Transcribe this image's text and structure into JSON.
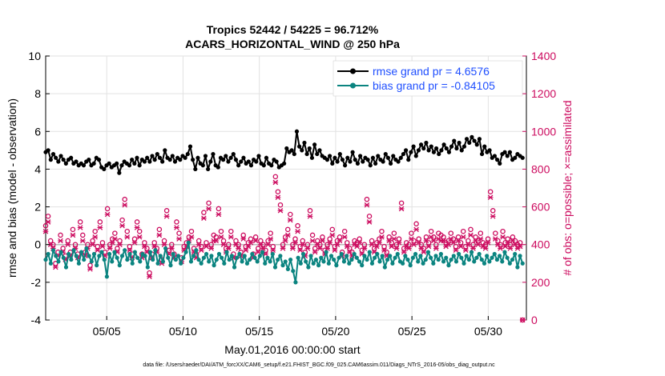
{
  "chart_data": {
    "type": "line",
    "title_line1": "Tropics 52442 / 54225 = 96.712%",
    "title_line2": "ACARS_HORIZONTAL_WIND @ 250 hPa",
    "xlabel": "May.01,2016 00:00:00 start",
    "ylabel_left": "rmse and bias (model - observation)",
    "ylabel_right": "# of obs: o=possible; ×=assimilated",
    "footnote": "data file: /Users/raeder/DAI/ATM_forcXX/CAM6_setup/f.e21.FHIST_BGC.f09_025.CAM6assim.011/Diags_NTrS_2016-05/obs_diag_output.nc",
    "xlim": [
      1,
      32.5
    ],
    "x_ticks": [
      5,
      10,
      15,
      20,
      25,
      30
    ],
    "x_tick_labels": [
      "05/05",
      "05/10",
      "05/15",
      "05/20",
      "05/25",
      "05/30"
    ],
    "ylim_left": [
      -4,
      10
    ],
    "y_left_ticks": [
      "-4",
      "-2",
      "0",
      "2",
      "4",
      "6",
      "8",
      "10"
    ],
    "ylim_right": [
      0,
      1400
    ],
    "y_right_ticks": [
      "0",
      "200",
      "400",
      "600",
      "800",
      "1000",
      "1200",
      "1400"
    ],
    "grid": true,
    "legend_position": "top-right",
    "colors": {
      "rmse": "#000000",
      "bias": "#0b8480",
      "obs": "#cc0a5e",
      "zero": "#bbbbbb",
      "legend": "#1f4fff"
    },
    "series": [
      {
        "name": "rmse grand pr = 4.6576",
        "axis": "left",
        "marker": "dot-line",
        "values": [
          4.9,
          5.0,
          4.5,
          4.8,
          4.6,
          4.4,
          4.7,
          4.5,
          4.3,
          4.5,
          4.6,
          4.3,
          4.4,
          4.2,
          4.3,
          4.2,
          4.4,
          4.5,
          4.2,
          4.3,
          4.6,
          4.5,
          4.1,
          4.0,
          4.2,
          4.3,
          4.1,
          4.2,
          4.3,
          3.8,
          4.2,
          4.4,
          4.3,
          4.2,
          4.5,
          4.3,
          4.6,
          4.2,
          4.5,
          4.4,
          4.6,
          4.4,
          4.7,
          4.5,
          4.8,
          4.6,
          4.4,
          5.0,
          4.6,
          4.5,
          4.7,
          4.4,
          4.6,
          4.5,
          4.7,
          4.6,
          4.8,
          5.2,
          4.5,
          4.0,
          4.6,
          4.3,
          4.2,
          4.7,
          4.0,
          4.4,
          4.8,
          4.2,
          4.1,
          4.6,
          4.5,
          4.7,
          4.4,
          4.6,
          4.8,
          4.5,
          4.2,
          4.4,
          4.6,
          4.3,
          4.4,
          4.2,
          4.5,
          4.4,
          4.7,
          4.3,
          4.2,
          4.6,
          4.3,
          4.2,
          4.5,
          4.4,
          4.1,
          4.2,
          4.3,
          5.1,
          4.9,
          5.0,
          4.8,
          6.0,
          5.2,
          5.0,
          5.4,
          4.8,
          5.1,
          4.6,
          5.3,
          4.8,
          5.0,
          4.7,
          4.6,
          4.5,
          4.7,
          4.3,
          4.6,
          4.4,
          4.8,
          4.5,
          4.2,
          4.6,
          4.4,
          4.9,
          4.5,
          4.3,
          4.7,
          4.4,
          4.6,
          4.5,
          4.2,
          4.6,
          4.3,
          4.7,
          4.5,
          4.4,
          4.8,
          4.6,
          4.3,
          4.7,
          4.5,
          4.4,
          4.6,
          4.8,
          5.0,
          4.5,
          4.9,
          5.2,
          4.7,
          5.0,
          5.3,
          5.1,
          5.4,
          5.0,
          5.2,
          4.9,
          5.1,
          4.8,
          5.0,
          5.3,
          5.1,
          4.9,
          5.2,
          5.5,
          5.1,
          5.4,
          5.0,
          5.2,
          5.6,
          5.4,
          5.7,
          5.5,
          5.3,
          5.6,
          4.8,
          5.2,
          4.9,
          5.0,
          4.6,
          4.7,
          4.5,
          4.3,
          4.8,
          4.9,
          4.7,
          4.9,
          4.5,
          4.6,
          4.8,
          4.7,
          4.6
        ]
      },
      {
        "name": "bias grand pr = -0.84105",
        "axis": "left",
        "marker": "dot-line",
        "values": [
          -0.8,
          -0.5,
          -1.0,
          -0.3,
          -0.6,
          -0.9,
          -0.4,
          -0.7,
          -1.2,
          -0.5,
          -0.8,
          -0.3,
          -0.6,
          -1.0,
          -0.4,
          -0.8,
          -0.2,
          -0.6,
          -0.9,
          -0.5,
          -1.1,
          -0.6,
          -0.4,
          -0.8,
          -1.7,
          -0.5,
          -0.9,
          -0.4,
          -0.7,
          -1.1,
          -0.6,
          -0.3,
          -0.8,
          -0.5,
          -1.0,
          -0.4,
          -0.7,
          -0.9,
          -0.5,
          -0.6,
          -1.2,
          -0.4,
          -0.8,
          -0.3,
          -1.0,
          -0.6,
          -0.9,
          -0.2,
          -0.7,
          -1.1,
          -0.5,
          -0.8,
          -0.6,
          -1.0,
          -0.7,
          -0.4,
          0.1,
          -0.9,
          -0.6,
          -0.3,
          -0.8,
          -1.0,
          -0.7,
          -0.5,
          -0.9,
          -0.6,
          -1.1,
          -0.8,
          -0.5,
          -0.7,
          -1.0,
          -0.4,
          -0.8,
          -0.6,
          -1.2,
          -0.7,
          -0.5,
          -0.9,
          -0.6,
          -1.0,
          -0.8,
          -0.5,
          -0.7,
          -0.9,
          -0.6,
          -0.4,
          -1.0,
          -0.7,
          -0.9,
          -0.5,
          -1.2,
          -0.8,
          -0.6,
          -1.1,
          -0.9,
          -1.3,
          -0.8,
          -1.4,
          -2.0,
          -0.7,
          -1.0,
          -0.5,
          -0.9,
          -1.2,
          -0.6,
          -1.0,
          -0.8,
          -1.1,
          -0.7,
          -0.9,
          -0.4,
          -1.0,
          -0.6,
          -0.8,
          -1.1,
          -0.7,
          -0.5,
          -0.9,
          -0.6,
          -1.0,
          -0.8,
          -0.5,
          -0.7,
          -0.9,
          -1.1,
          -0.6,
          -0.8,
          -0.4,
          -1.0,
          -0.7,
          -0.5,
          -0.9,
          -0.6,
          -1.2,
          -0.8,
          -0.6,
          -1.0,
          -0.7,
          -0.5,
          -0.9,
          -1.0,
          -0.6,
          -0.8,
          -1.1,
          -0.7,
          -0.5,
          -0.9,
          -0.6,
          -1.0,
          -0.8,
          -0.4,
          -0.7,
          -1.0,
          -0.6,
          -0.8,
          -0.5,
          -0.9,
          -0.7,
          -1.1,
          -0.8,
          -0.6,
          -0.9,
          -0.5,
          -0.7,
          -1.0,
          -0.6,
          -0.8,
          -0.4,
          -0.9,
          -0.7,
          -0.5,
          -0.8,
          -1.0,
          -0.6,
          -0.9,
          -0.7,
          -0.5,
          -0.8,
          -0.6,
          -0.9,
          -0.4,
          -0.7,
          -1.0,
          -0.8,
          -0.5,
          -1.2,
          -0.6,
          -1.0
        ]
      },
      {
        "name": "# obs possible",
        "axis": "right",
        "marker": "circle",
        "values": [
          500,
          550,
          420,
          400,
          300,
          360,
          450,
          380,
          340,
          420,
          360,
          480,
          400,
          350,
          520,
          450,
          360,
          400,
          290,
          420,
          470,
          390,
          520,
          410,
          360,
          590,
          400,
          430,
          460,
          380,
          420,
          530,
          640,
          470,
          390,
          350,
          430,
          520,
          470,
          350,
          410,
          380,
          250,
          350,
          410,
          380,
          480,
          320,
          420,
          580,
          370,
          400,
          350,
          520,
          460,
          330,
          390,
          410,
          440,
          470,
          380,
          350,
          420,
          390,
          570,
          410,
          620,
          400,
          450,
          440,
          590,
          470,
          420,
          380,
          400,
          470,
          350,
          420,
          400,
          360,
          450,
          390,
          410,
          430,
          350,
          440,
          380,
          420,
          400,
          370,
          420,
          460,
          390,
          760,
          680,
          610,
          400,
          440,
          480,
          560,
          400,
          430,
          500,
          390,
          420,
          360,
          400,
          580,
          450,
          380,
          420,
          400,
          440,
          370,
          400,
          430,
          480,
          390,
          420,
          440,
          360,
          470,
          410,
          380,
          360,
          420,
          410,
          430,
          370,
          400,
          640,
          550,
          420,
          380,
          410,
          430,
          470,
          390,
          360,
          440,
          410,
          460,
          400,
          430,
          620,
          380,
          410,
          400,
          460,
          420,
          510,
          430,
          400,
          380,
          440,
          410,
          470,
          440,
          400,
          460,
          450,
          440,
          410,
          420,
          460,
          430,
          390,
          440,
          410,
          470,
          390,
          420,
          480,
          400,
          440,
          420,
          460,
          410,
          400,
          430,
          680,
          580,
          460,
          420,
          400,
          470,
          410,
          430,
          400,
          440,
          420,
          400,
          410,
          0
        ]
      },
      {
        "name": "# obs assimilated",
        "axis": "right",
        "marker": "x",
        "values": [
          470,
          520,
          400,
          380,
          280,
          340,
          420,
          360,
          320,
          400,
          340,
          450,
          380,
          330,
          490,
          420,
          340,
          380,
          270,
          400,
          440,
          370,
          490,
          390,
          340,
          560,
          380,
          410,
          430,
          360,
          400,
          500,
          610,
          440,
          370,
          330,
          410,
          490,
          440,
          330,
          390,
          360,
          230,
          330,
          390,
          360,
          450,
          300,
          400,
          550,
          350,
          380,
          330,
          490,
          430,
          310,
          370,
          390,
          420,
          440,
          360,
          330,
          400,
          370,
          540,
          390,
          590,
          380,
          420,
          420,
          560,
          440,
          400,
          360,
          380,
          440,
          330,
          400,
          380,
          340,
          430,
          370,
          390,
          410,
          330,
          420,
          360,
          400,
          380,
          350,
          400,
          430,
          370,
          730,
          650,
          580,
          380,
          420,
          450,
          530,
          380,
          410,
          470,
          370,
          400,
          340,
          380,
          550,
          420,
          360,
          400,
          380,
          420,
          350,
          380,
          410,
          450,
          370,
          400,
          420,
          340,
          440,
          390,
          360,
          340,
          400,
          390,
          410,
          350,
          380,
          610,
          520,
          400,
          360,
          390,
          410,
          440,
          370,
          340,
          420,
          390,
          430,
          380,
          410,
          590,
          360,
          390,
          380,
          430,
          400,
          480,
          410,
          380,
          360,
          420,
          390,
          440,
          420,
          380,
          430,
          420,
          420,
          390,
          400,
          430,
          410,
          370,
          420,
          390,
          440,
          370,
          400,
          450,
          380,
          420,
          400,
          430,
          390,
          380,
          410,
          650,
          550,
          430,
          400,
          380,
          440,
          390,
          410,
          380,
          420,
          400,
          380,
          390,
          0
        ]
      }
    ]
  }
}
